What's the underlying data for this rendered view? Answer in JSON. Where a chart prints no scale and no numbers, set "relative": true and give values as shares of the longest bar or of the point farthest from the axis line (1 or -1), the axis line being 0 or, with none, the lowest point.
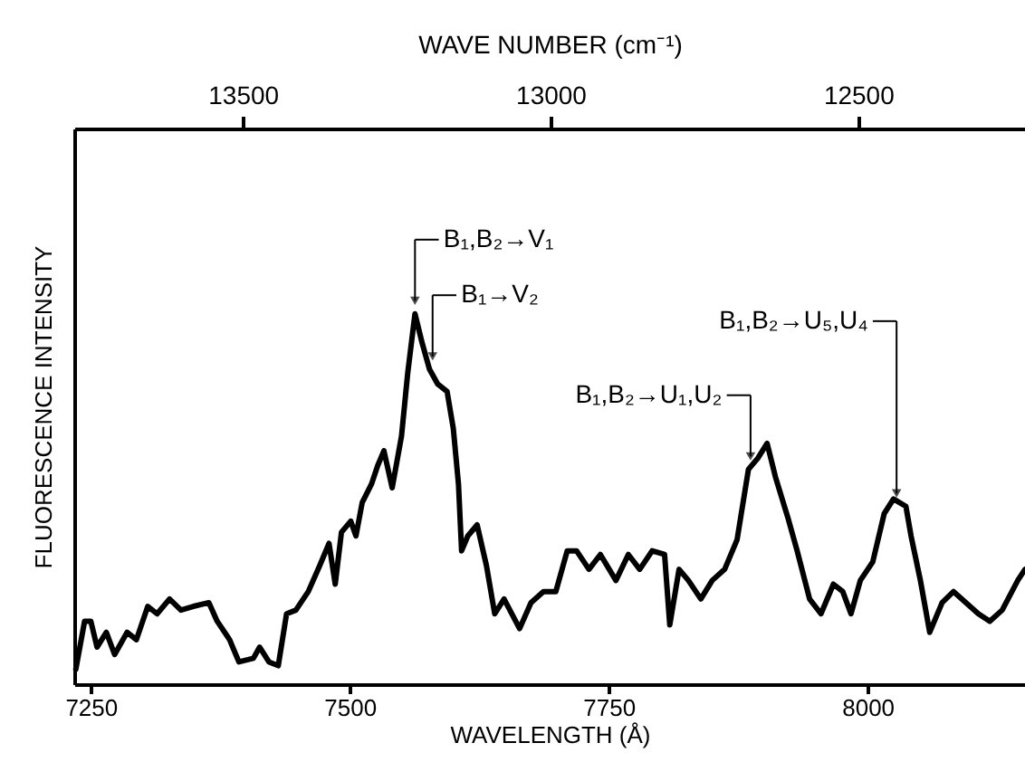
{
  "chart_data": {
    "type": "line",
    "relative": true,
    "xlabel": "WAVELENGTH (Å)",
    "ylabel": "FLUORESCENCE INTENSITY",
    "x2label": "WAVE NUMBER (cm⁻¹)",
    "xlim": [
      7234,
      8152
    ],
    "xticks": [
      7250,
      7500,
      7750,
      8000
    ],
    "x2lim": [
      13774,
      12229
    ],
    "x2ticks": [
      13500,
      13000,
      12500
    ],
    "x": [
      7235.5,
      7244,
      7250,
      7256,
      7265,
      7273,
      7285,
      7294,
      7305,
      7314,
      7326,
      7337,
      7349,
      7364,
      7372,
      7384,
      7393,
      7407,
      7413,
      7422,
      7431,
      7439,
      7448,
      7460,
      7471,
      7480,
      7486,
      7492,
      7501,
      7506,
      7512,
      7521,
      7527,
      7533,
      7541,
      7550,
      7556,
      7563,
      7570,
      7577,
      7585,
      7594,
      7600,
      7605,
      7608,
      7614,
      7623,
      7632,
      7640,
      7649,
      7664,
      7675,
      7687,
      7699,
      7710,
      7719,
      7731,
      7742,
      7757,
      7769,
      7780,
      7792,
      7804,
      7809,
      7818,
      7827,
      7839,
      7850,
      7862,
      7874,
      7885,
      7894,
      7903,
      7911,
      7923,
      7932,
      7944,
      7955,
      7967,
      7976,
      7984,
      7993,
      8005,
      8016,
      8025,
      8037,
      8042,
      8051,
      8060,
      8072,
      8083,
      8095,
      8107,
      8118,
      8130,
      8145,
      8152
    ],
    "series": [
      {
        "color": "#000000",
        "values": [
          0.04,
          0.17,
          0.17,
          0.1,
          0.14,
          0.08,
          0.14,
          0.12,
          0.21,
          0.19,
          0.23,
          0.2,
          0.21,
          0.22,
          0.17,
          0.12,
          0.06,
          0.07,
          0.1,
          0.06,
          0.05,
          0.19,
          0.2,
          0.25,
          0.32,
          0.38,
          0.27,
          0.41,
          0.44,
          0.4,
          0.49,
          0.54,
          0.59,
          0.63,
          0.53,
          0.67,
          0.84,
          1,
          0.92,
          0.85,
          0.81,
          0.79,
          0.69,
          0.54,
          0.36,
          0.4,
          0.43,
          0.32,
          0.19,
          0.23,
          0.15,
          0.22,
          0.25,
          0.25,
          0.36,
          0.36,
          0.31,
          0.35,
          0.28,
          0.35,
          0.31,
          0.36,
          0.35,
          0.16,
          0.31,
          0.28,
          0.23,
          0.28,
          0.31,
          0.39,
          0.58,
          0.61,
          0.65,
          0.56,
          0.45,
          0.36,
          0.23,
          0.19,
          0.27,
          0.25,
          0.19,
          0.28,
          0.33,
          0.46,
          0.5,
          0.48,
          0.4,
          0.28,
          0.14,
          0.22,
          0.25,
          0.22,
          0.19,
          0.17,
          0.2,
          0.28,
          0.31
        ]
      }
    ],
    "annotations": [
      {
        "text": "B₁,B₂→V₁",
        "x": 7563,
        "y": 1
      },
      {
        "text": "B₁→V₂",
        "x": 7580,
        "y": 0.85
      },
      {
        "text": "B₁,B₂→U₁,U₂",
        "x": 7887,
        "y": 0.58
      },
      {
        "text": "B₁,B₂→U₅,U₄",
        "x": 8028,
        "y": 0.48
      }
    ]
  }
}
